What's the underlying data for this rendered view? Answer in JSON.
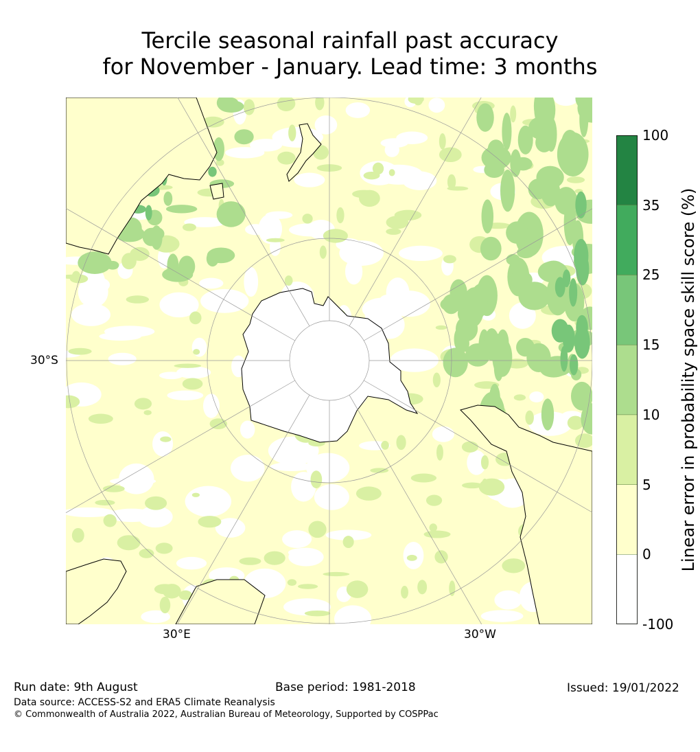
{
  "title": {
    "line1": "Tercile seasonal rainfall past accuracy",
    "line2": "for November - January. Lead time: 3 months"
  },
  "map": {
    "projection": "south-polar-stereographic",
    "graticule_labels": {
      "lat_30s": "30°S",
      "lon_30e": "30°E",
      "lon_30w": "30°W"
    },
    "land_outline_color": "#000000",
    "graticule_color": "#999999"
  },
  "colorbar": {
    "title": "Linear error in probability space skill score (%)",
    "levels": [
      {
        "label": "-100",
        "color": "#ffffff"
      },
      {
        "label": "0",
        "color": "#ffffcc"
      },
      {
        "label": "5",
        "color": "#d9f0a3"
      },
      {
        "label": "10",
        "color": "#addd8e"
      },
      {
        "label": "15",
        "color": "#78c679"
      },
      {
        "label": "25",
        "color": "#41ab5d"
      },
      {
        "label": "35",
        "color": "#238443"
      },
      {
        "label": "100",
        "color": null
      }
    ]
  },
  "footer": {
    "run_date": "Run date: 9th August",
    "base_period": "Base period: 1981-2018",
    "issued": "Issued: 19/01/2022",
    "data_source": "Data source: ACCESS-S2 and ERA5 Climate Reanalysis",
    "copyright": "© Commonwealth of Australia 2022, Australian Bureau of Meteorology, Supported by COSPPac"
  }
}
